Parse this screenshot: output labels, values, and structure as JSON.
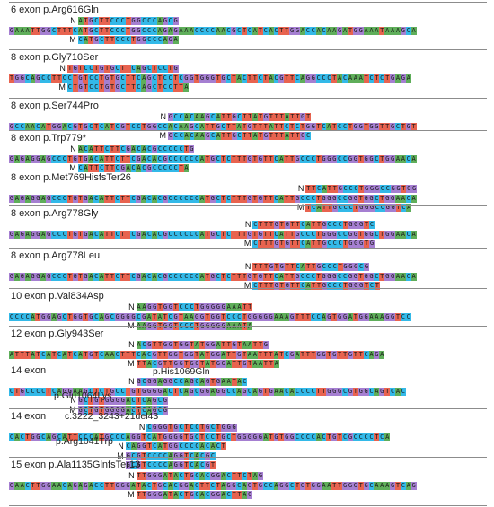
{
  "panels": [
    {
      "title": "6 exon p.Arg616Gln",
      "tracks": [
        {
          "tag": "N",
          "offset": 13,
          "seq": "ATGCTTCCCTGGCCCAGCG"
        },
        {
          "tag": "",
          "offset": 0,
          "seq": "GAAATTGGCTTTCATGCTTCCCTGGCCCAGAGAAACCCCAACGCTCATCACTTGGACCACAAGATGGAAATAAAGCA"
        },
        {
          "tag": "M",
          "offset": 13,
          "seq": "CATGCTTCCCTGGCCCAGA"
        }
      ]
    },
    {
      "title": "8 exon p.Gly710Ser",
      "tracks": [
        {
          "tag": "N",
          "offset": 11,
          "seq": "TGTCCTGTGCTTCAGCTCCTG"
        },
        {
          "tag": "",
          "offset": 0,
          "seq": "TGGCAGCCTTCCTGTCCTGTGCTTCAGCTCCTCGGTGGGTGCTACTTCTACGTTCAGGCCCTACAAATCTCTGAGA"
        },
        {
          "tag": "M",
          "offset": 11,
          "seq": "CTGTCCTGTGCTTCAGCTCCTTA"
        }
      ]
    },
    {
      "title": "8 exon p.Ser744Pro",
      "tracks": [
        {
          "tag": "N",
          "offset": 30,
          "seq": "GCCACAAGCATTGCTTATGTTTATTGT"
        },
        {
          "tag": "",
          "offset": 0,
          "seq": "GCCAACATGGACGTGCTCATCGTCCTGGCCACAAGCATTGCTTATGTTTATTCTCTGGTCATCCTGGTGGTTGCTGT"
        },
        {
          "tag": "M",
          "offset": 30,
          "seq": "GCCACAAGCATTGCTTATGTTTATTGC"
        }
      ]
    },
    {
      "title": "8 exon p.Trp779*",
      "tracks": [
        {
          "tag": "N",
          "offset": 13,
          "seq": "ACATTCTTCGACACGCCCCCTG"
        },
        {
          "tag": "",
          "offset": 0,
          "seq": "GAGAGGAGCCCTGTGACATTCTTCGACACGCCCCCCATGCTCTTTGTGTTCATTGCCCTGGGCCGGTGGCTGGAACA"
        },
        {
          "tag": "M",
          "offset": 13,
          "seq": "CATTCTTCGACACGCCCCCTA"
        }
      ]
    },
    {
      "title": "8 exon p.Met769HisfsTer26",
      "tracks": [
        {
          "tag": "N",
          "offset": 56,
          "seq": "TTCATTGCCCTGGGCCGGTGG"
        },
        {
          "tag": "",
          "offset": 0,
          "seq": "GAGAGGAGCCCTGTGACATTCTTCGACACGCCCCCCATGCTCTTTGTGTTCATTGCCCTGGGCCGGTGGCTGGAACA"
        },
        {
          "tag": "M",
          "offset": 56,
          "seq": "TCATTGCCCTGGGCCGGTCA"
        }
      ]
    },
    {
      "title": "8 exon p.Arg778Gly",
      "tracks": [
        {
          "tag": "N",
          "offset": 46,
          "seq": "CTTTGTGTTCATTGCCCTGGGTC"
        },
        {
          "tag": "",
          "offset": 0,
          "seq": "GAGAGGAGCCCTGTGACATTCTTCGACACGCCCCCCATGCTCTTTGTGTTCATTGCCCTGGGCCGGTGGCTGGAACA"
        },
        {
          "tag": "M",
          "offset": 46,
          "seq": "CTTTGTGTTCATTGCCCTGGGTG"
        }
      ]
    },
    {
      "title": "8 exon p.Arg778Leu",
      "tracks": [
        {
          "tag": "N",
          "offset": 46,
          "seq": "TTTGTGTTCATTGCCCTGGGCG"
        },
        {
          "tag": "",
          "offset": 0,
          "seq": "GAGAGGAGCCCTGTGACATTCTTCGACACGCCCCCCATGCTCTTTGTGTTCATTGCCCTGGGCCGGTGGCTGGAACA"
        },
        {
          "tag": "M",
          "offset": 46,
          "seq": "CTTTGTGTTCATTGCCCTGGGTCT"
        }
      ]
    },
    {
      "title": "10 exon p.Val834Asp",
      "tracks": [
        {
          "tag": "N",
          "offset": 24,
          "seq": "AAGGTGGTCCCTGGGGGAAATT"
        },
        {
          "tag": "",
          "offset": 0,
          "seq": "CCCCATGGAGCTGGTGCAGCGGGGCGATATCGTAAGGTGGTCCCTGGGGGAAAGTTTCCAGTGGATGGAAAGGTCC"
        },
        {
          "tag": "M",
          "offset": 24,
          "seq": "AAGGTGGTCCCTGGGGGAAATA"
        }
      ]
    },
    {
      "title": "12 exon p.Gly943Ser",
      "tracks": [
        {
          "tag": "N",
          "offset": 24,
          "seq": "ACGTTGGTGGTATGGATTGTAATTG"
        },
        {
          "tag": "",
          "offset": 0,
          "seq": "ATTTATCATCATCATGTCAACTTTCACGTTGGTGGTATGGATTGTAATTTATCGATTTGGTGTTGTTCAGA"
        },
        {
          "tag": "M",
          "offset": 24,
          "seq": "TTACGTTGGTGGTATGGATTGTAATTA"
        }
      ]
    },
    {
      "title": "14 exon",
      "tracks": [
        {
          "tag": "N",
          "offset": 24,
          "seq": "GCGGAGGCCAGCAGTGAATAC"
        },
        {
          "tag": "",
          "offset": 0,
          "seq": "CTGCCCCTCAGGAAGCTCTGCCTGTGGGGACTCAGCGGAGGCCAGCAGTGAACACCCCTTGGGCGTGGCAGTCAC"
        },
        {
          "tag": "N",
          "offset": 13,
          "seq": "GCTGTGGGGACTCAGCG"
        },
        {
          "tag": "M",
          "offset": 13,
          "seq": "GCTGTGGGGACTCAGCG"
        }
      ],
      "labels": [
        {
          "name": "p.His1069Gln",
          "text": "p.His1069Gln"
        },
        {
          "name": "p.Glu1064Lys",
          "text": "p.Glu1064Lys"
        }
      ]
    },
    {
      "title": "14 exon",
      "tracks": [
        {
          "tag": "N",
          "offset": 26,
          "seq": "CGGGTGCTCCTGCTGGG"
        },
        {
          "tag": "",
          "offset": 0,
          "seq": "CACTGGCAGCATTCCCATGCCCAGGTCATGGGGTGCTCCTGCTGGGGGATGTGGCCCCACTGTCGCCCCTCA"
        },
        {
          "tag": "N",
          "offset": 22,
          "seq": "CAGGTCATGGCCCCACACT"
        },
        {
          "tag": "M",
          "offset": 22,
          "seq": "GCGTCCCCAGGTCACGC"
        },
        {
          "tag": "",
          "offset": 22,
          "seq": "GCGTCCCCAGGTCACGT"
        }
      ],
      "labels": [
        {
          "name": "c-3222-3243-del43",
          "text": "c.3222_3243+21del43"
        },
        {
          "name": "p.Arg1041Trp",
          "text": "p.Arg1041Trp"
        }
      ]
    },
    {
      "title": "15 exon p.Ala1135GlnfsTer13",
      "tracks": [
        {
          "tag": "N",
          "offset": 24,
          "seq": "TTGGGATACTGCACGGACTTCTAG"
        },
        {
          "tag": "",
          "offset": 0,
          "seq": "GAACTTGGAACAGAGACCTTGGGATACTGCACGGACTTCTAGGCAGTGCCAGGCTGTGGAATTGGGTGCAAAGTCAG"
        },
        {
          "tag": "M",
          "offset": 24,
          "seq": "TTGGGATACTGCACGGACTTAG"
        }
      ]
    }
  ]
}
